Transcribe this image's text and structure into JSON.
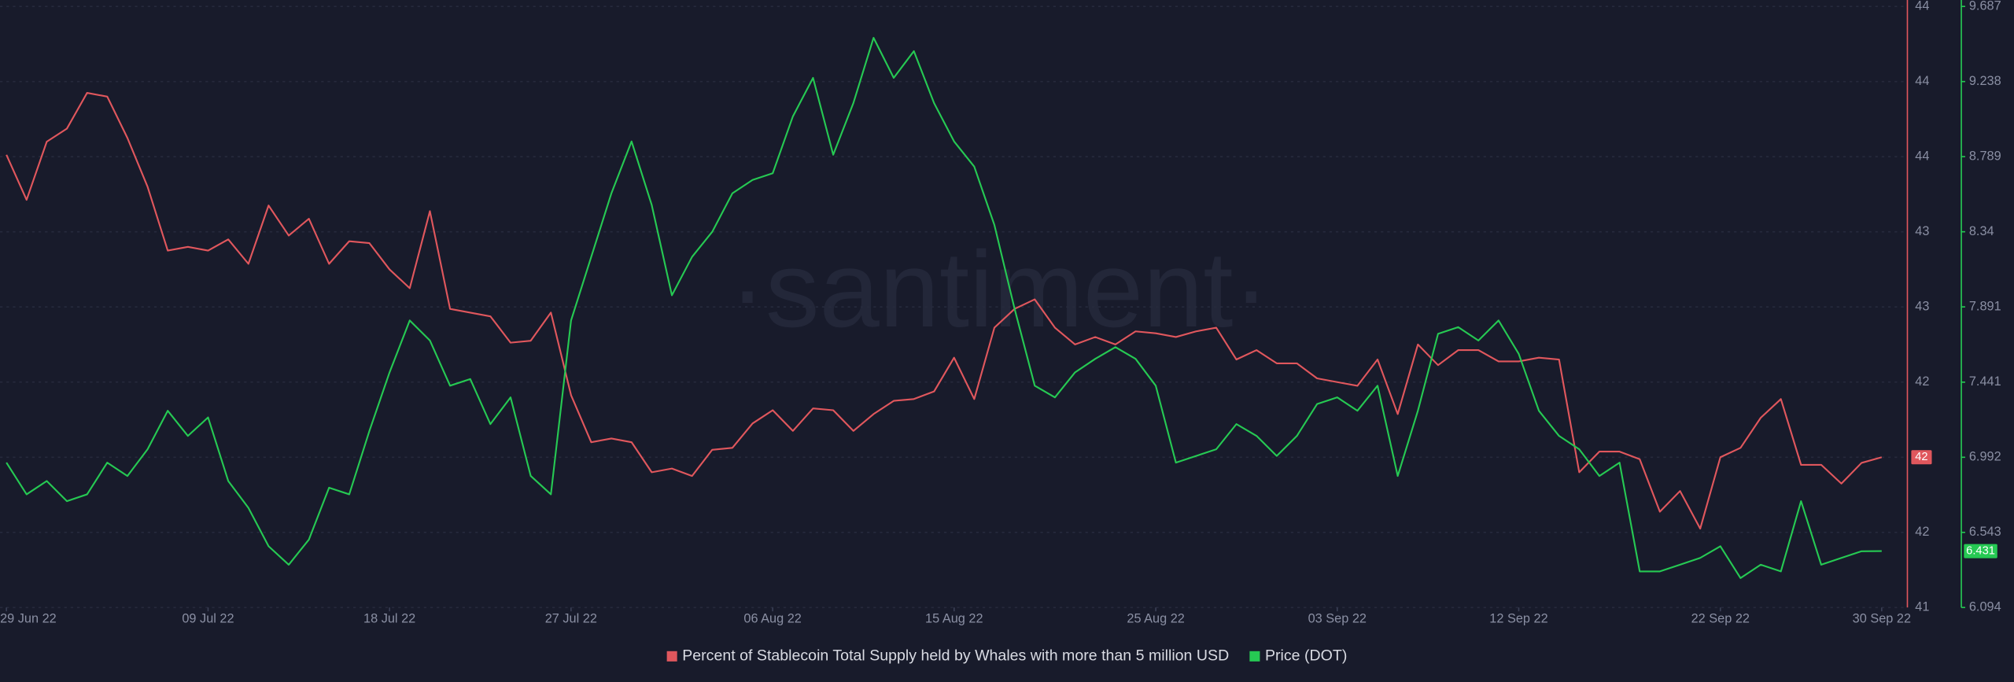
{
  "chart_data": {
    "type": "line",
    "watermark": "·santiment·",
    "x": [
      "2022-06-29",
      "2022-06-30",
      "2022-07-01",
      "2022-07-02",
      "2022-07-03",
      "2022-07-04",
      "2022-07-05",
      "2022-07-06",
      "2022-07-07",
      "2022-07-08",
      "2022-07-09",
      "2022-07-10",
      "2022-07-11",
      "2022-07-12",
      "2022-07-13",
      "2022-07-14",
      "2022-07-15",
      "2022-07-16",
      "2022-07-17",
      "2022-07-18",
      "2022-07-19",
      "2022-07-20",
      "2022-07-21",
      "2022-07-22",
      "2022-07-23",
      "2022-07-24",
      "2022-07-25",
      "2022-07-26",
      "2022-07-27",
      "2022-07-28",
      "2022-07-29",
      "2022-07-30",
      "2022-07-31",
      "2022-08-01",
      "2022-08-02",
      "2022-08-03",
      "2022-08-04",
      "2022-08-05",
      "2022-08-06",
      "2022-08-07",
      "2022-08-08",
      "2022-08-09",
      "2022-08-10",
      "2022-08-11",
      "2022-08-12",
      "2022-08-13",
      "2022-08-14",
      "2022-08-15",
      "2022-08-16",
      "2022-08-17",
      "2022-08-18",
      "2022-08-19",
      "2022-08-20",
      "2022-08-21",
      "2022-08-22",
      "2022-08-23",
      "2022-08-24",
      "2022-08-25",
      "2022-08-26",
      "2022-08-27",
      "2022-08-28",
      "2022-08-29",
      "2022-08-30",
      "2022-08-31",
      "2022-09-01",
      "2022-09-02",
      "2022-09-03",
      "2022-09-04",
      "2022-09-05",
      "2022-09-06",
      "2022-09-07",
      "2022-09-08",
      "2022-09-09",
      "2022-09-10",
      "2022-09-11",
      "2022-09-12",
      "2022-09-13",
      "2022-09-14",
      "2022-09-15",
      "2022-09-16",
      "2022-09-17",
      "2022-09-18",
      "2022-09-19",
      "2022-09-20",
      "2022-09-21",
      "2022-09-22",
      "2022-09-23",
      "2022-09-24",
      "2022-09-25",
      "2022-09-26",
      "2022-09-27",
      "2022-09-28",
      "2022-09-29",
      "2022-09-30"
    ],
    "xticks": [
      {
        "value": "2022-06-29",
        "label": "29 Jun 22"
      },
      {
        "value": "2022-07-09",
        "label": "09 Jul 22"
      },
      {
        "value": "2022-07-18",
        "label": "18 Jul 22"
      },
      {
        "value": "2022-07-27",
        "label": "27 Jul 22"
      },
      {
        "value": "2022-08-06",
        "label": "06 Aug 22"
      },
      {
        "value": "2022-08-15",
        "label": "15 Aug 22"
      },
      {
        "value": "2022-08-25",
        "label": "25 Aug 22"
      },
      {
        "value": "2022-09-03",
        "label": "03 Sep 22"
      },
      {
        "value": "2022-09-12",
        "label": "12 Sep 22"
      },
      {
        "value": "2022-09-22",
        "label": "22 Sep 22"
      },
      {
        "value": "2022-09-30",
        "label": "30 Sep 22"
      }
    ],
    "ylim": [
      41.2,
      44.4
    ],
    "yticks": [
      {
        "value": 44.4,
        "label": "44"
      },
      {
        "value": 44.0,
        "label": "44"
      },
      {
        "value": 43.6,
        "label": "44"
      },
      {
        "value": 43.2,
        "label": "43"
      },
      {
        "value": 42.8,
        "label": "43"
      },
      {
        "value": 42.4,
        "label": "42"
      },
      {
        "value": 42.0,
        "label": "42"
      },
      {
        "value": 41.6,
        "label": "42"
      },
      {
        "value": 41.2,
        "label": "41"
      }
    ],
    "y2lim": [
      6.094,
      9.687
    ],
    "y2ticks": [
      9.687,
      9.238,
      8.789,
      8.34,
      7.891,
      7.441,
      6.992,
      6.543,
      6.094
    ],
    "grid": true,
    "series": [
      {
        "name": "Percent of Stablecoin Total Supply held by Whales with more than 5 million USD",
        "color": "#e0575d",
        "axis": "y",
        "current_label": "42",
        "values": [
          43.61,
          43.37,
          43.68,
          43.75,
          43.94,
          43.92,
          43.7,
          43.44,
          43.1,
          43.12,
          43.1,
          43.16,
          43.03,
          43.34,
          43.18,
          43.27,
          43.03,
          43.15,
          43.14,
          43.0,
          42.9,
          43.31,
          42.79,
          42.77,
          42.75,
          42.61,
          42.62,
          42.77,
          42.33,
          42.08,
          42.1,
          42.08,
          41.92,
          41.94,
          41.9,
          42.04,
          42.05,
          42.18,
          42.25,
          42.14,
          42.26,
          42.25,
          42.14,
          42.23,
          42.3,
          42.31,
          42.35,
          42.53,
          42.31,
          42.69,
          42.79,
          42.84,
          42.69,
          42.6,
          42.64,
          42.6,
          42.67,
          42.66,
          42.64,
          42.67,
          42.69,
          42.52,
          42.57,
          42.5,
          42.5,
          42.42,
          42.4,
          42.38,
          42.52,
          42.23,
          42.6,
          42.49,
          42.57,
          42.57,
          42.51,
          42.51,
          42.53,
          42.52,
          41.92,
          42.03,
          42.03,
          41.99,
          41.71,
          41.82,
          41.62,
          42.0,
          42.05,
          42.21,
          42.31,
          41.96,
          41.96,
          41.86,
          41.97,
          42.0
        ]
      },
      {
        "name": "Price (DOT)",
        "color": "#26c953",
        "axis": "y2",
        "current_label": "6.431",
        "values": [
          6.96,
          6.77,
          6.85,
          6.73,
          6.77,
          6.96,
          6.88,
          7.04,
          7.27,
          7.12,
          7.23,
          6.85,
          6.69,
          6.46,
          6.35,
          6.5,
          6.81,
          6.77,
          7.15,
          7.5,
          7.81,
          7.69,
          7.42,
          7.46,
          7.19,
          7.35,
          6.88,
          6.77,
          7.81,
          8.19,
          8.57,
          8.88,
          8.5,
          7.96,
          8.19,
          8.34,
          8.57,
          8.65,
          8.69,
          9.03,
          9.26,
          8.8,
          9.11,
          9.5,
          9.26,
          9.42,
          9.11,
          8.88,
          8.73,
          8.38,
          7.88,
          7.42,
          7.35,
          7.5,
          7.58,
          7.65,
          7.58,
          7.42,
          6.96,
          7.0,
          7.04,
          7.19,
          7.12,
          7.0,
          7.12,
          7.31,
          7.35,
          7.27,
          7.42,
          6.88,
          7.27,
          7.73,
          7.77,
          7.69,
          7.81,
          7.61,
          7.27,
          7.12,
          7.04,
          6.88,
          6.96,
          6.31,
          6.31,
          6.35,
          6.39,
          6.46,
          6.27,
          6.35,
          6.31,
          6.73,
          6.35,
          6.39,
          6.43,
          6.431
        ]
      }
    ]
  }
}
